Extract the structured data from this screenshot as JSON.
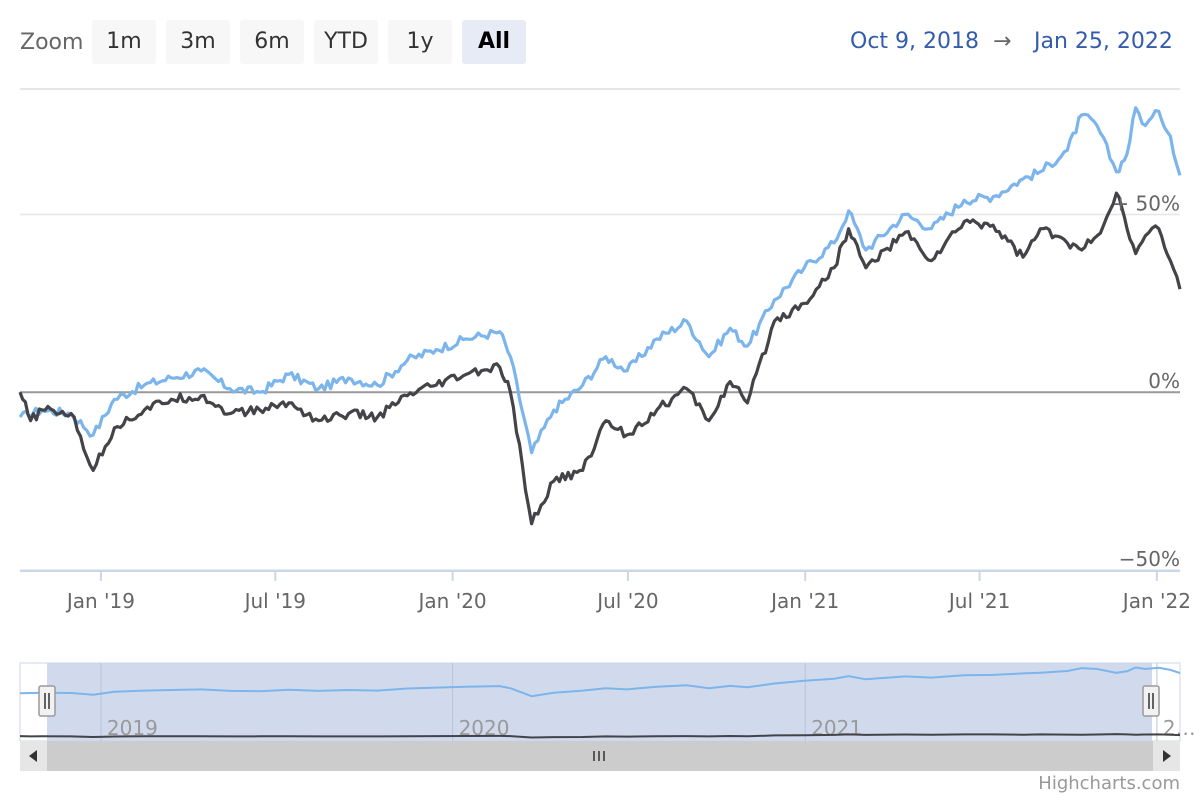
{
  "zoom": {
    "label": "Zoom",
    "buttons": [
      "1m",
      "3m",
      "6m",
      "YTD",
      "1y",
      "All"
    ],
    "active": "All"
  },
  "range": {
    "from": "Oct 9, 2018",
    "arrow": "→",
    "to": "Jan 25, 2022"
  },
  "credit": "Highcharts.com",
  "colors": {
    "series1": "#7cb5ec",
    "series2": "#434348",
    "navigator_mask": "#ccd6eb",
    "axis": "#ccd6eb",
    "zero_line": "#999999"
  },
  "chart_data": {
    "type": "line",
    "title": "",
    "ylim": [
      -50,
      85
    ],
    "yticks": [
      {
        "value": 50,
        "label": "+ 50%"
      },
      {
        "value": 0,
        "label": "0%"
      },
      {
        "value": -50,
        "label": "−50%"
      }
    ],
    "xticks": [
      {
        "date": "2019-01-01",
        "label": "Jan '19"
      },
      {
        "date": "2019-07-01",
        "label": "Jul '19"
      },
      {
        "date": "2020-01-01",
        "label": "Jan '20"
      },
      {
        "date": "2020-07-01",
        "label": "Jul '20"
      },
      {
        "date": "2021-01-01",
        "label": "Jan '21"
      },
      {
        "date": "2021-07-01",
        "label": "Jul '21"
      },
      {
        "date": "2022-01-01",
        "label": "Jan '22"
      }
    ],
    "navigator_xticks": [
      {
        "date": "2019-01-01",
        "label": "2019"
      },
      {
        "date": "2020-01-01",
        "label": "2020"
      },
      {
        "date": "2021-01-01",
        "label": "2021"
      },
      {
        "date": "2022-01-01",
        "label": "2…"
      }
    ],
    "series": [
      {
        "color": "#7cb5ec",
        "data": [
          [
            "2018-10-09",
            -7
          ],
          [
            "2018-11-01",
            -5
          ],
          [
            "2018-12-01",
            -6
          ],
          [
            "2018-12-24",
            -12
          ],
          [
            "2019-01-15",
            -2
          ],
          [
            "2019-02-15",
            2
          ],
          [
            "2019-03-15",
            4
          ],
          [
            "2019-04-15",
            6
          ],
          [
            "2019-05-15",
            1
          ],
          [
            "2019-06-15",
            0
          ],
          [
            "2019-07-15",
            5
          ],
          [
            "2019-08-15",
            1
          ],
          [
            "2019-09-15",
            4
          ],
          [
            "2019-10-15",
            2
          ],
          [
            "2019-11-15",
            9
          ],
          [
            "2019-12-15",
            12
          ],
          [
            "2020-01-15",
            15
          ],
          [
            "2020-02-19",
            17
          ],
          [
            "2020-03-01",
            10
          ],
          [
            "2020-03-23",
            -17
          ],
          [
            "2020-04-15",
            -5
          ],
          [
            "2020-05-15",
            2
          ],
          [
            "2020-06-08",
            10
          ],
          [
            "2020-06-30",
            6
          ],
          [
            "2020-07-31",
            15
          ],
          [
            "2020-08-31",
            20
          ],
          [
            "2020-09-23",
            10
          ],
          [
            "2020-10-15",
            18
          ],
          [
            "2020-11-02",
            13
          ],
          [
            "2020-11-30",
            26
          ],
          [
            "2020-12-31",
            35
          ],
          [
            "2021-01-31",
            42
          ],
          [
            "2021-02-15",
            51
          ],
          [
            "2021-03-05",
            40
          ],
          [
            "2021-04-15",
            50
          ],
          [
            "2021-05-12",
            46
          ],
          [
            "2021-06-15",
            54
          ],
          [
            "2021-07-15",
            55
          ],
          [
            "2021-08-15",
            60
          ],
          [
            "2021-09-02",
            62
          ],
          [
            "2021-09-30",
            68
          ],
          [
            "2021-10-15",
            78
          ],
          [
            "2021-10-31",
            75
          ],
          [
            "2021-11-20",
            62
          ],
          [
            "2021-12-01",
            67
          ],
          [
            "2021-12-10",
            80
          ],
          [
            "2021-12-20",
            75
          ],
          [
            "2022-01-03",
            79
          ],
          [
            "2022-01-15",
            72
          ],
          [
            "2022-01-25",
            61
          ]
        ]
      },
      {
        "color": "#434348",
        "data": [
          [
            "2018-10-09",
            0
          ],
          [
            "2018-10-20",
            -8
          ],
          [
            "2018-11-01",
            -5
          ],
          [
            "2018-12-01",
            -6
          ],
          [
            "2018-12-24",
            -22
          ],
          [
            "2019-01-15",
            -10
          ],
          [
            "2019-02-15",
            -5
          ],
          [
            "2019-03-15",
            -2
          ],
          [
            "2019-04-15",
            -1
          ],
          [
            "2019-05-15",
            -6
          ],
          [
            "2019-06-15",
            -5
          ],
          [
            "2019-07-15",
            -3
          ],
          [
            "2019-08-15",
            -8
          ],
          [
            "2019-09-15",
            -6
          ],
          [
            "2019-10-15",
            -7
          ],
          [
            "2019-11-15",
            -1
          ],
          [
            "2019-12-15",
            2
          ],
          [
            "2020-01-15",
            5
          ],
          [
            "2020-02-19",
            7
          ],
          [
            "2020-03-01",
            0
          ],
          [
            "2020-03-23",
            -37
          ],
          [
            "2020-04-15",
            -25
          ],
          [
            "2020-05-15",
            -22
          ],
          [
            "2020-06-08",
            -8
          ],
          [
            "2020-06-30",
            -12
          ],
          [
            "2020-07-31",
            -5
          ],
          [
            "2020-08-31",
            1
          ],
          [
            "2020-09-23",
            -8
          ],
          [
            "2020-10-15",
            3
          ],
          [
            "2020-11-02",
            -3
          ],
          [
            "2020-11-30",
            20
          ],
          [
            "2020-12-31",
            25
          ],
          [
            "2021-01-31",
            35
          ],
          [
            "2021-02-15",
            46
          ],
          [
            "2021-03-05",
            35
          ],
          [
            "2021-04-15",
            45
          ],
          [
            "2021-05-12",
            37
          ],
          [
            "2021-06-15",
            48
          ],
          [
            "2021-07-15",
            47
          ],
          [
            "2021-08-15",
            38
          ],
          [
            "2021-09-02",
            46
          ],
          [
            "2021-09-30",
            42
          ],
          [
            "2021-10-15",
            40
          ],
          [
            "2021-10-31",
            44
          ],
          [
            "2021-11-20",
            56
          ],
          [
            "2021-12-01",
            46
          ],
          [
            "2021-12-10",
            39
          ],
          [
            "2021-12-20",
            44
          ],
          [
            "2022-01-03",
            46
          ],
          [
            "2022-01-15",
            37
          ],
          [
            "2022-01-25",
            29
          ]
        ]
      }
    ]
  }
}
